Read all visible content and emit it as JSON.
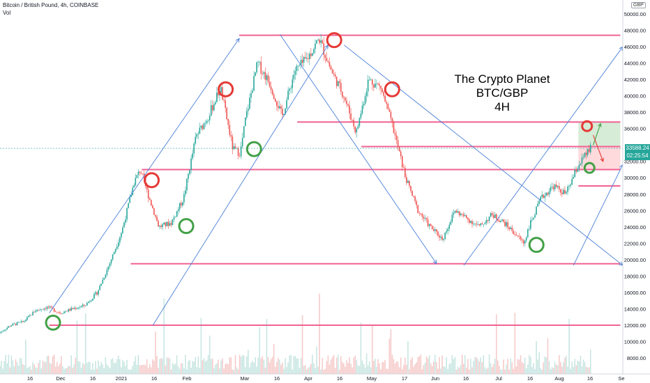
{
  "header": {
    "symbol_line": "Bitcoin / British Pound, 4h, COINBASE",
    "volume_label": "Vol",
    "currency_badge": "GBP"
  },
  "annotation": {
    "line1": "The Crypto Planet",
    "line2": "BTC/GBP",
    "line3": "4H"
  },
  "price_tag": {
    "price": "33588.24",
    "countdown": "02:25:54"
  },
  "colors": {
    "up": "#26a69a",
    "down": "#ef5350",
    "level": "#f06292",
    "channel": "#4a7fd8",
    "circle_red": "#e53935",
    "circle_green": "#43a047",
    "zone_green": "#c8e6c9",
    "zone_red": "#ffcdd2"
  },
  "chart_data": {
    "type": "candlestick",
    "y_axis": {
      "min": 7000,
      "max": 50000,
      "tick_labels": [
        "50000.00",
        "48000.00",
        "46000.00",
        "44000.00",
        "42000.00",
        "40000.00",
        "38000.00",
        "36000.00",
        "34000.00",
        "32000.00",
        "30000.00",
        "28000.00",
        "26000.00",
        "24000.00",
        "22000.00",
        "20000.00",
        "18000.00",
        "16000.00",
        "14000.00",
        "12000.00",
        "10000.00",
        "8000.00"
      ],
      "tick_values": [
        50000,
        48000,
        46000,
        44000,
        42000,
        40000,
        38000,
        36000,
        34000,
        32000,
        30000,
        28000,
        26000,
        24000,
        22000,
        20000,
        18000,
        16000,
        14000,
        12000,
        10000,
        8000
      ]
    },
    "x_axis": {
      "tick_labels": [
        "16",
        "Dec",
        "16",
        "2021",
        "16",
        "Feb",
        "Mar",
        "16",
        "Apr",
        "16",
        "May",
        "17",
        "Jun",
        "16",
        "Jul",
        "16",
        "Aug",
        "16",
        "Se"
      ]
    },
    "price_path": [
      [
        0,
        11000
      ],
      [
        1,
        12000
      ],
      [
        2,
        12400
      ],
      [
        3,
        13800
      ],
      [
        4,
        14200
      ],
      [
        5,
        13500
      ],
      [
        6,
        14000
      ],
      [
        7,
        14400
      ],
      [
        8,
        16000
      ],
      [
        9,
        19500
      ],
      [
        10,
        23500
      ],
      [
        11,
        29500
      ],
      [
        11.5,
        31000
      ],
      [
        12,
        28500
      ],
      [
        13,
        24000
      ],
      [
        14,
        24500
      ],
      [
        15,
        27500
      ],
      [
        16,
        35000
      ],
      [
        17,
        37500
      ],
      [
        18,
        41000
      ],
      [
        19,
        33500
      ],
      [
        19.6,
        33000
      ],
      [
        20,
        37000
      ],
      [
        21,
        44000
      ],
      [
        22,
        41500
      ],
      [
        23,
        37500
      ],
      [
        24,
        43000
      ],
      [
        25,
        44500
      ],
      [
        26,
        47000
      ],
      [
        27,
        43000
      ],
      [
        28,
        40000
      ],
      [
        29,
        35500
      ],
      [
        30,
        42000
      ],
      [
        31,
        41000
      ],
      [
        32,
        36000
      ],
      [
        33,
        30000
      ],
      [
        34,
        26000
      ],
      [
        35,
        24000
      ],
      [
        36,
        22500
      ],
      [
        37,
        26000
      ],
      [
        38,
        25000
      ],
      [
        39,
        24000
      ],
      [
        40,
        25500
      ],
      [
        41,
        24500
      ],
      [
        42,
        23000
      ],
      [
        42.6,
        22000
      ],
      [
        43,
        24000
      ],
      [
        44,
        27500
      ],
      [
        45,
        29000
      ],
      [
        46,
        28000
      ],
      [
        47,
        31500
      ],
      [
        48,
        33588
      ]
    ],
    "levels": [
      47400,
      36800,
      33800,
      31000,
      29000,
      19500,
      12000
    ],
    "channels": [
      {
        "from": [
          4,
          13500
        ],
        "to": [
          19.4,
          47000
        ]
      },
      {
        "from": [
          12.4,
          12000
        ],
        "to": [
          26.6,
          46200
        ]
      },
      {
        "from": [
          22.7,
          47500
        ],
        "to": [
          35.4,
          19500
        ]
      },
      {
        "from": [
          27.9,
          46200
        ],
        "to": [
          50.5,
          19300
        ]
      },
      {
        "from": [
          37.6,
          19300
        ],
        "to": [
          50.5,
          46000
        ]
      },
      {
        "from": [
          46.5,
          19300
        ],
        "to": [
          50.5,
          31600
        ]
      }
    ],
    "circles_red": [
      [
        12.3,
        29700
      ],
      [
        18.3,
        40800
      ],
      [
        27.1,
        46800
      ],
      [
        31.8,
        40800
      ],
      [
        47.6,
        36300
      ]
    ],
    "circles_green": [
      [
        4.3,
        12300
      ],
      [
        15.1,
        24100
      ],
      [
        20.6,
        33500
      ],
      [
        43.5,
        21800
      ],
      [
        47.8,
        31200
      ]
    ],
    "zone_target": {
      "x_from": 46.9,
      "x_to": 50.3,
      "y_from": 33800,
      "y_to": 36800
    },
    "zone_stop": {
      "x_from": 46.9,
      "x_to": 50.3,
      "y_from": 31000,
      "y_to": 33800
    },
    "last_price": 33588.24
  }
}
